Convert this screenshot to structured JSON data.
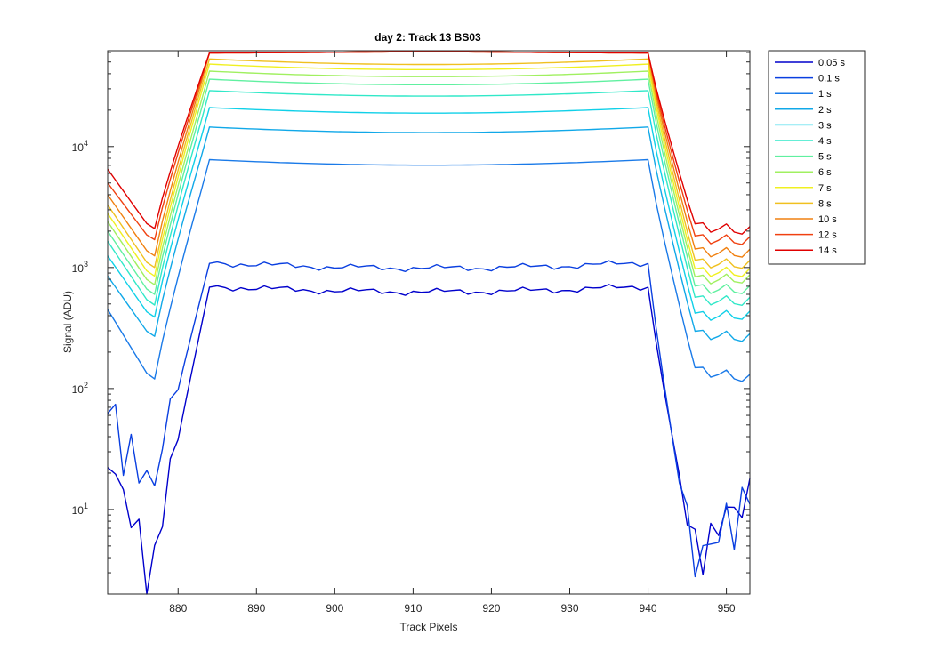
{
  "chart_data": {
    "type": "line",
    "title": "day 2: Track 13  BS03",
    "xlabel": "Track Pixels",
    "ylabel": "Signal (ADU)",
    "xlim": [
      871,
      953
    ],
    "ylim": [
      2,
      62000
    ],
    "yscale": "log",
    "legend_position": "outside-right",
    "grid": false,
    "x_ticks": [
      880,
      890,
      900,
      910,
      920,
      930,
      940,
      950
    ],
    "y_ticks": [
      {
        "value": 10,
        "base": "10",
        "exp": "1"
      },
      {
        "value": 100,
        "base": "10",
        "exp": "2"
      },
      {
        "value": 1000,
        "base": "10",
        "exp": "3"
      },
      {
        "value": 10000,
        "base": "10",
        "exp": "4"
      }
    ],
    "series": [
      {
        "name": "0.05 s",
        "color": "#0000cc",
        "mid": 700,
        "edge_left": 20,
        "min_left": 3,
        "edge_right": 10,
        "min_right": 3
      },
      {
        "name": "0.1 s",
        "color": "#0a3fe0",
        "mid": 1100,
        "edge_left": 60,
        "min_left": 12,
        "edge_right": 12,
        "min_right": 2
      },
      {
        "name": "1 s",
        "color": "#1a7ae8",
        "mid": 7800,
        "edge_left": 450,
        "min_left": 120,
        "edge_right": 120,
        "min_right": 110
      },
      {
        "name": "2 s",
        "color": "#10a8e8",
        "mid": 14500,
        "edge_left": 850,
        "min_left": 270,
        "edge_right": 260,
        "min_right": 220
      },
      {
        "name": "3 s",
        "color": "#10d0e8",
        "mid": 21000,
        "edge_left": 1250,
        "min_left": 390,
        "edge_right": 400,
        "min_right": 310
      },
      {
        "name": "4 s",
        "color": "#30e8c8",
        "mid": 29000,
        "edge_left": 1650,
        "min_left": 490,
        "edge_right": 520,
        "min_right": 420
      },
      {
        "name": "5 s",
        "color": "#60f0a0",
        "mid": 36000,
        "edge_left": 2000,
        "min_left": 600,
        "edge_right": 650,
        "min_right": 520
      },
      {
        "name": "6 s",
        "color": "#a0f060",
        "mid": 42000,
        "edge_left": 2400,
        "min_left": 720,
        "edge_right": 800,
        "min_right": 620
      },
      {
        "name": "7 s",
        "color": "#f0f020",
        "mid": 48000,
        "edge_left": 2800,
        "min_left": 850,
        "edge_right": 900,
        "min_right": 720
      },
      {
        "name": "8 s",
        "color": "#f0c020",
        "mid": 53000,
        "edge_left": 3300,
        "min_left": 1000,
        "edge_right": 1050,
        "min_right": 850
      },
      {
        "name": "10 s",
        "color": "#f08010",
        "mid": 57000,
        "edge_left": 4000,
        "min_left": 1250,
        "edge_right": 1300,
        "min_right": 1050
      },
      {
        "name": "12 s",
        "color": "#f04010",
        "mid": 58500,
        "edge_left": 5000,
        "min_left": 1700,
        "edge_right": 1650,
        "min_right": 1350
      },
      {
        "name": "14 s",
        "color": "#e00000",
        "mid": 60000,
        "edge_left": 6500,
        "min_left": 2100,
        "edge_right": 2000,
        "min_right": 1700
      }
    ]
  }
}
